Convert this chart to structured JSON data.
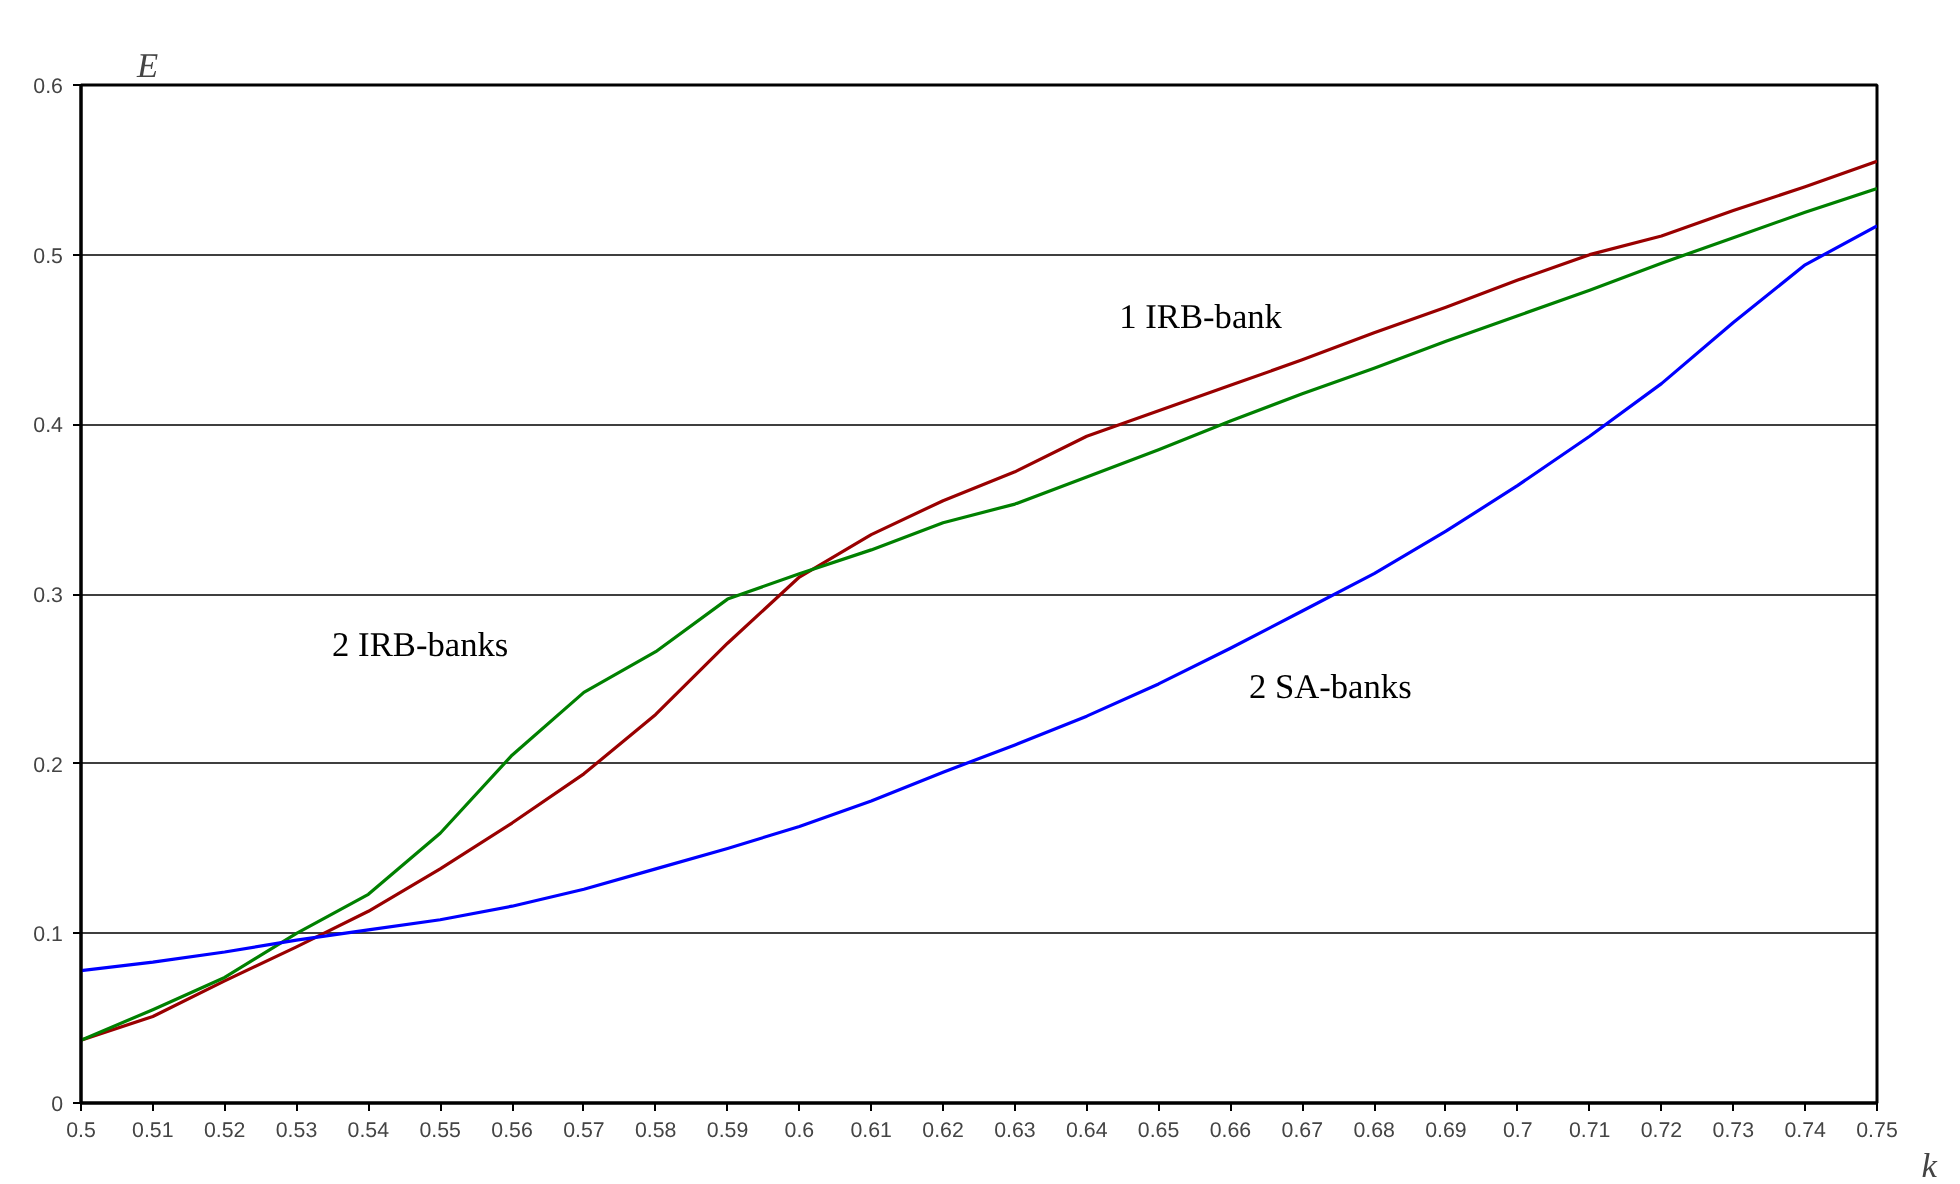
{
  "chart_data": {
    "type": "line",
    "xlabel": "k",
    "ylabel": "E",
    "x": [
      0.5,
      0.51,
      0.52,
      0.53,
      0.54,
      0.55,
      0.56,
      0.57,
      0.58,
      0.59,
      0.6,
      0.61,
      0.62,
      0.63,
      0.64,
      0.65,
      0.66,
      0.67,
      0.68,
      0.69,
      0.7,
      0.71,
      0.72,
      0.73,
      0.74,
      0.75
    ],
    "series": [
      {
        "name": "1 IRB-bank",
        "color": "#990000",
        "values": [
          0.037,
          0.051,
          0.072,
          0.092,
          0.113,
          0.138,
          0.165,
          0.194,
          0.229,
          0.271,
          0.31,
          0.335,
          0.355,
          0.372,
          0.393,
          0.408,
          0.423,
          0.438,
          0.454,
          0.469,
          0.485,
          0.5,
          0.511,
          0.526,
          0.54,
          0.555
        ]
      },
      {
        "name": "2 IRB-banks",
        "color": "#008000",
        "values": [
          0.037,
          0.055,
          0.074,
          0.1,
          0.123,
          0.159,
          0.205,
          0.242,
          0.266,
          0.297,
          0.312,
          0.326,
          0.342,
          0.353,
          0.369,
          0.385,
          0.402,
          0.418,
          0.433,
          0.449,
          0.464,
          0.479,
          0.495,
          0.51,
          0.525,
          0.539
        ]
      },
      {
        "name": "2 SA-banks",
        "color": "#0000ff",
        "values": [
          0.078,
          0.083,
          0.089,
          0.096,
          0.102,
          0.108,
          0.116,
          0.126,
          0.138,
          0.15,
          0.163,
          0.178,
          0.195,
          0.211,
          0.228,
          0.247,
          0.268,
          0.29,
          0.312,
          0.337,
          0.364,
          0.393,
          0.424,
          0.46,
          0.494,
          0.517
        ]
      }
    ],
    "xlim": [
      0.5,
      0.75
    ],
    "xticks": [
      0.5,
      0.51,
      0.52,
      0.53,
      0.54,
      0.55,
      0.56,
      0.57,
      0.58,
      0.59,
      0.6,
      0.61,
      0.62,
      0.63,
      0.64,
      0.65,
      0.66,
      0.67,
      0.68,
      0.69,
      0.7,
      0.71,
      0.72,
      0.73,
      0.74,
      0.75
    ],
    "ylim": [
      0,
      0.6
    ],
    "yticks": [
      0,
      0.1,
      0.2,
      0.3,
      0.4,
      0.5,
      0.6
    ],
    "grid": "y",
    "marker": "none",
    "line_style": "solid"
  }
}
